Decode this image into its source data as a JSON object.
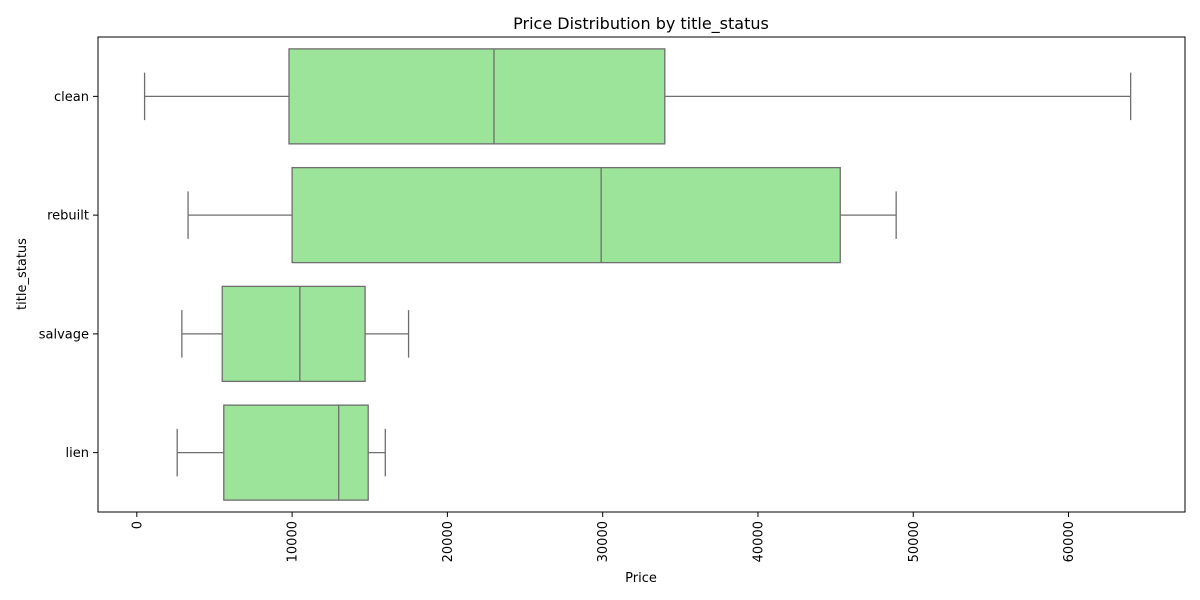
{
  "chart_data": {
    "type": "box",
    "orientation": "horizontal",
    "title": "Price Distribution by title_status",
    "xlabel": "Price",
    "ylabel": "title_status",
    "xlim": [
      -2500,
      67500
    ],
    "xticks": [
      0,
      10000,
      20000,
      30000,
      40000,
      50000,
      60000
    ],
    "xtick_label_rotation": 90,
    "grid": false,
    "legend": "none",
    "box_color": "#9de49b",
    "line_color": "#6e6e6e",
    "categories": [
      "clean",
      "rebuilt",
      "salvage",
      "lien"
    ],
    "boxes": [
      {
        "category": "clean",
        "whisker_low": 500,
        "q1": 9800,
        "median": 23000,
        "q3": 34000,
        "whisker_high": 64000
      },
      {
        "category": "rebuilt",
        "whisker_low": 3300,
        "q1": 10000,
        "median": 29900,
        "q3": 45300,
        "whisker_high": 48900
      },
      {
        "category": "salvage",
        "whisker_low": 2900,
        "q1": 5500,
        "median": 10500,
        "q3": 14700,
        "whisker_high": 17500
      },
      {
        "category": "lien",
        "whisker_low": 2600,
        "q1": 5600,
        "median": 13000,
        "q3": 14900,
        "whisker_high": 16000
      }
    ]
  }
}
